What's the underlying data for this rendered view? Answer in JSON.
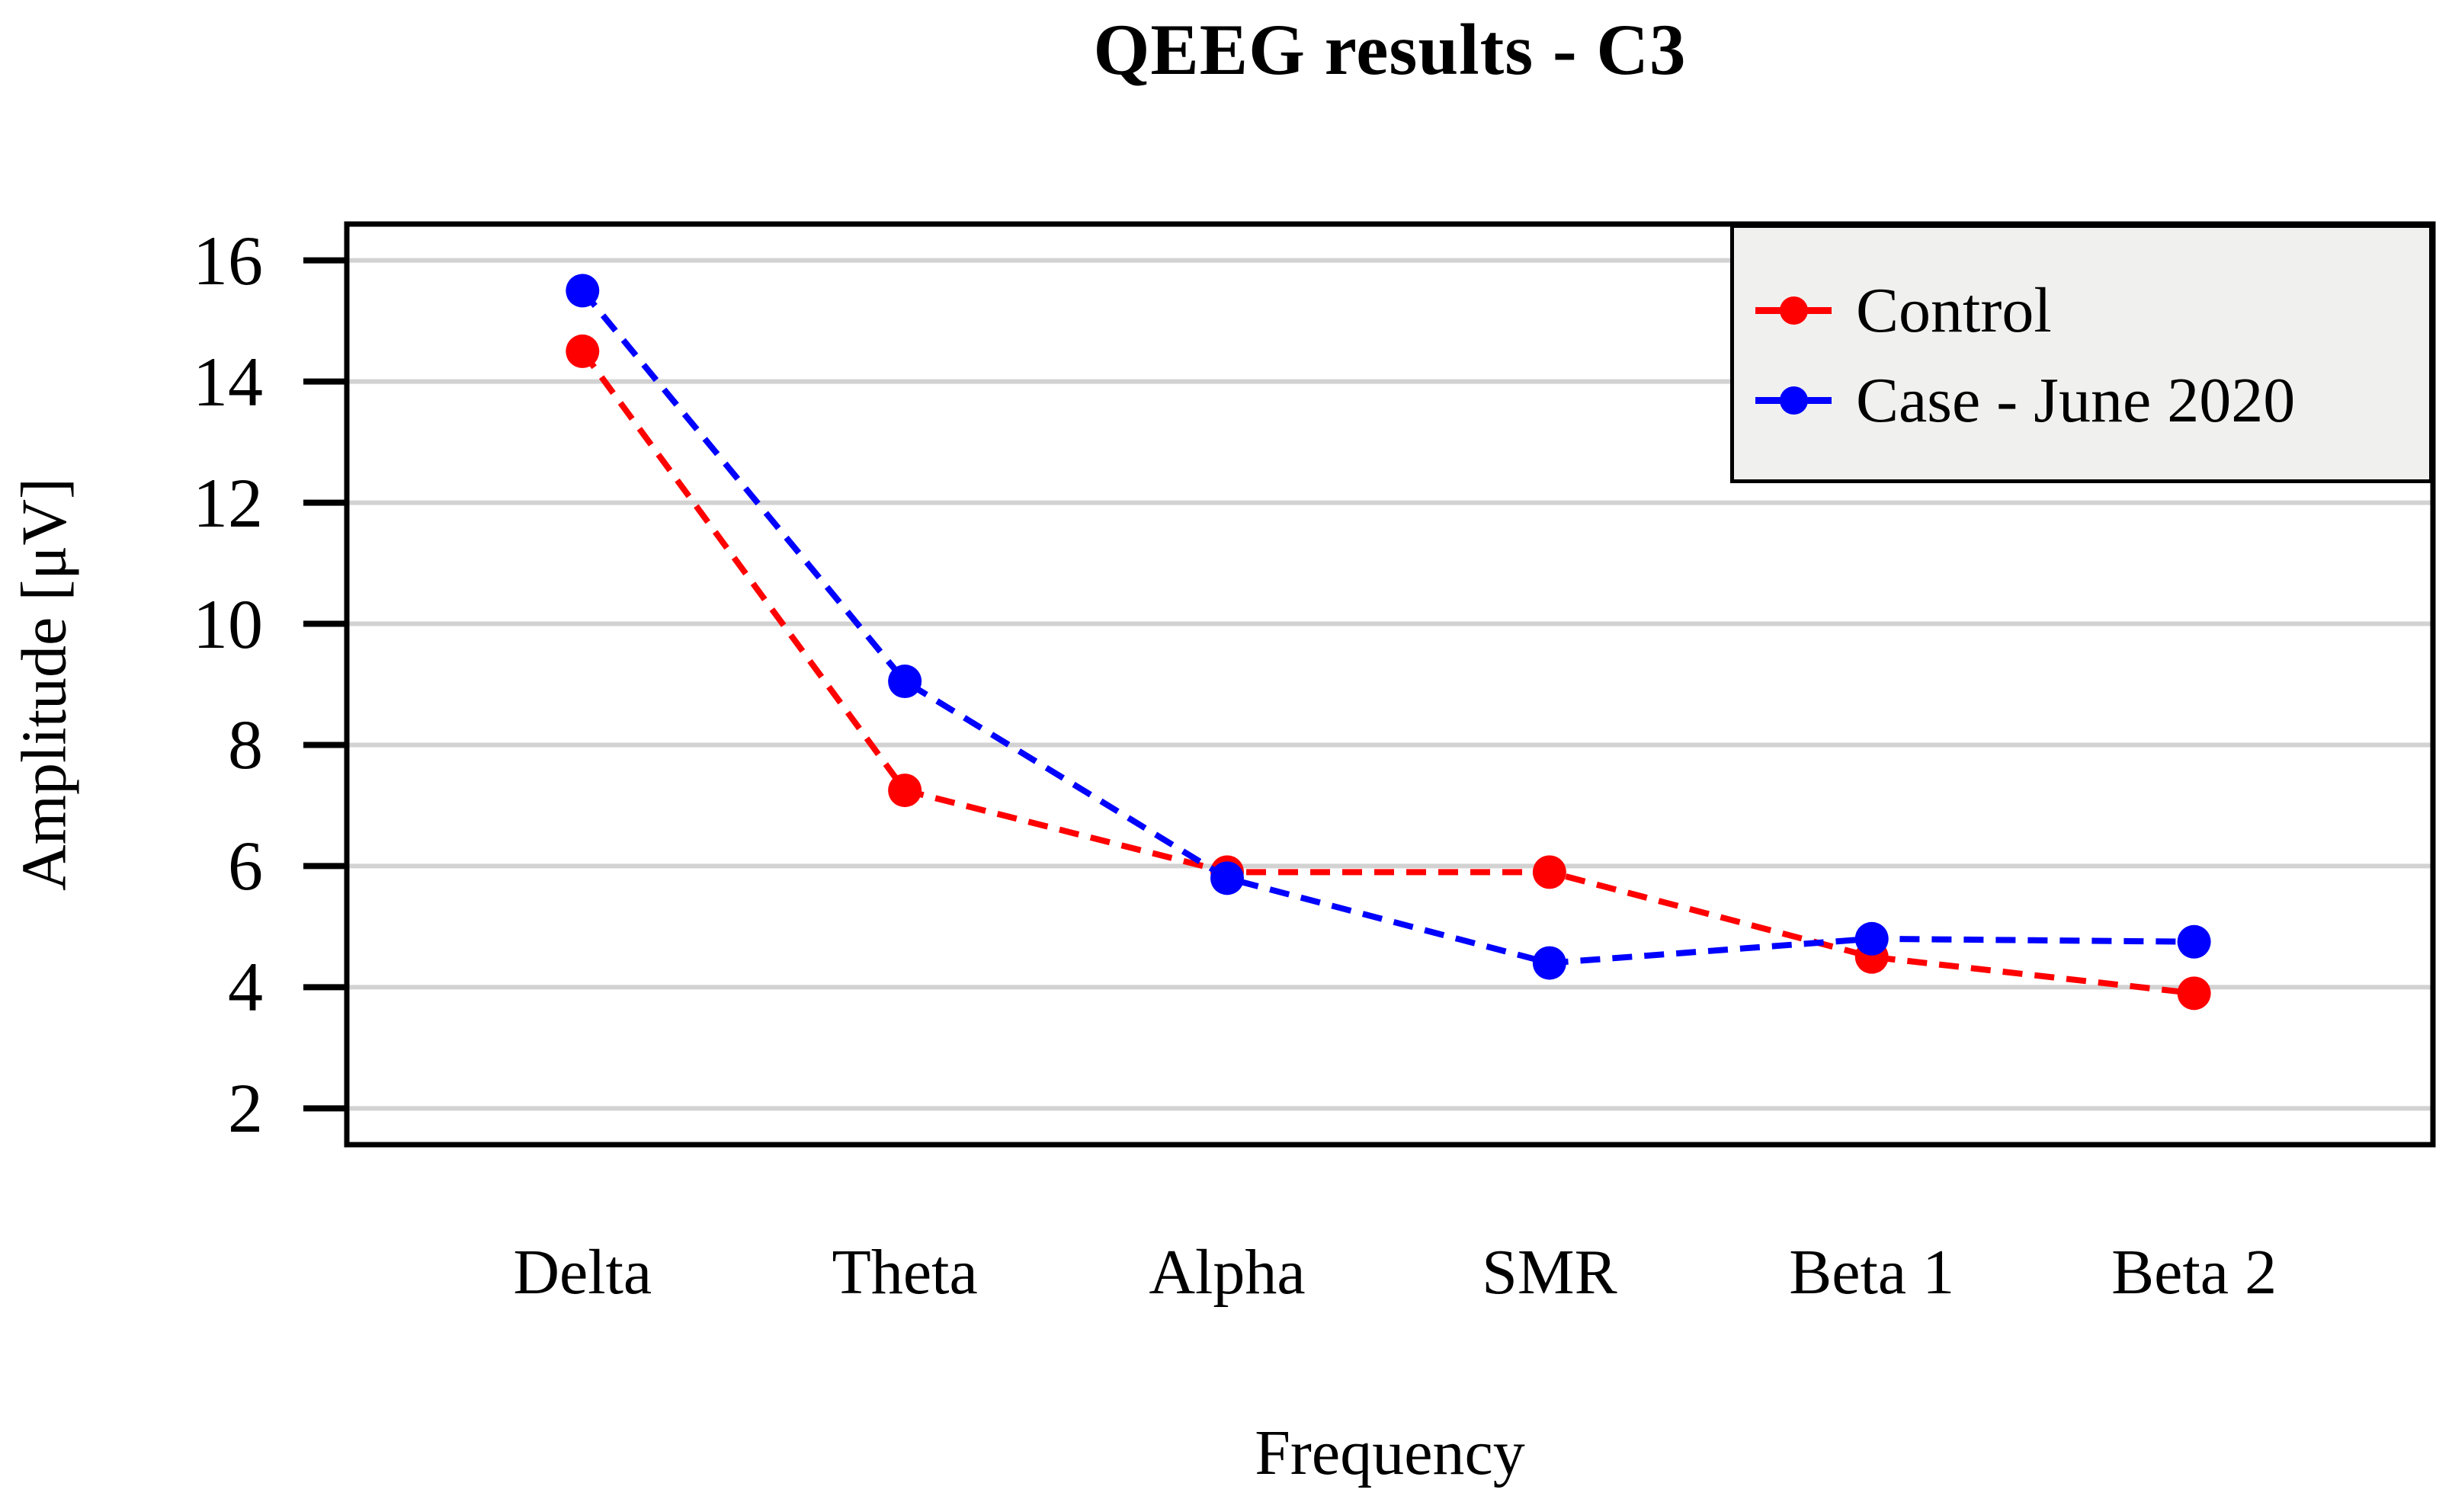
{
  "title": "QEEG results - C3",
  "chart_data": {
    "type": "line",
    "title": "QEEG results - C3",
    "xlabel": "Frequency",
    "ylabel": "Amplitude [μV]",
    "categories": [
      "Delta",
      "Theta",
      "Alpha",
      "SMR",
      "Beta 1",
      "Beta 2"
    ],
    "series": [
      {
        "name": "Control",
        "color": "#ff0000",
        "marker": "circle",
        "line_style": "dashed",
        "values": [
          14.5,
          7.25,
          5.9,
          5.9,
          4.5,
          3.9
        ]
      },
      {
        "name": "Case - June 2020",
        "color": "#0000ff",
        "marker": "circle",
        "line_style": "dashed",
        "values": [
          15.5,
          9.05,
          5.8,
          4.4,
          4.8,
          4.75
        ]
      }
    ],
    "yticks": [
      2,
      4,
      6,
      8,
      10,
      12,
      14,
      16
    ],
    "ylim": [
      1.4,
      16.6
    ],
    "grid": "horizontal",
    "grid_color": "#d2d2d2",
    "axis_color": "#000000",
    "plot_background": "#ffffff",
    "legend_position": "top-right",
    "legend_background": "#f0f0ef"
  }
}
